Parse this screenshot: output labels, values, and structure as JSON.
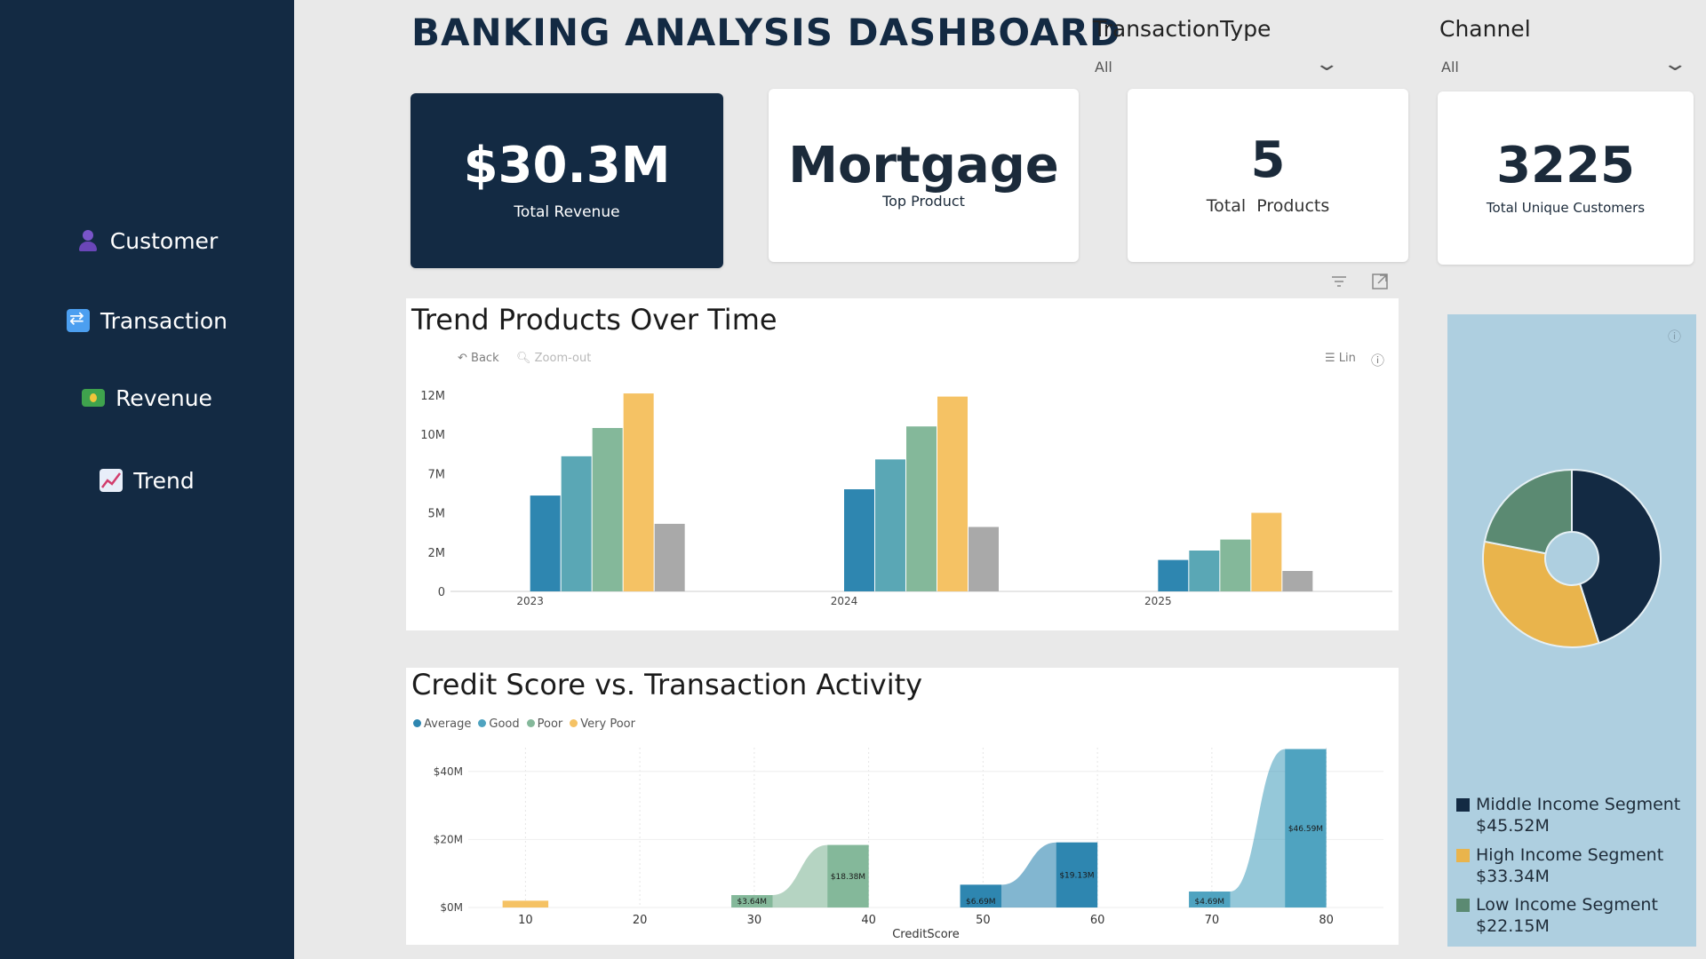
{
  "sidebar": {
    "items": [
      {
        "label": "Customer",
        "icon": "bust-in-silhouette-icon"
      },
      {
        "label": "Transaction",
        "icon": "repeat-arrows-icon"
      },
      {
        "label": "Revenue",
        "icon": "money-banknote-icon"
      },
      {
        "label": "Trend",
        "icon": "chart-increasing-icon"
      }
    ]
  },
  "header": {
    "title": "BANKING ANALYSIS DASHBOARD"
  },
  "filters": {
    "transaction_type": {
      "label": "TransactionType",
      "value": "All"
    },
    "channel": {
      "label": "Channel",
      "value": "All"
    }
  },
  "kpis": {
    "revenue": {
      "value": "$30.3M",
      "label": "Total Revenue"
    },
    "top_product": {
      "value": "Mortgage",
      "label": "Top Product"
    },
    "products": {
      "value": "5",
      "label": "Total  Products"
    },
    "customers": {
      "value": "3225",
      "label": "Total Unique Customers"
    }
  },
  "trend_panel": {
    "title": "Trend Products Over Time",
    "back_label": "Back",
    "zoom_out_label": "Zoom-out",
    "lin_label": "Lin"
  },
  "credit_panel": {
    "title": "Credit Score vs. Transaction Activity",
    "xlabel": "CreditScore"
  },
  "segments_panel": {
    "legend": [
      {
        "name": "Middle Income Segment",
        "value": "$45.52M"
      },
      {
        "name": "High Income Segment",
        "value": "$33.34M"
      },
      {
        "name": "Low Income Segment",
        "value": "$22.15M"
      }
    ]
  },
  "colors": {
    "navy": "#132a43",
    "bar1": "#2e86b0",
    "bar2": "#5aa7b5",
    "bar3": "#84b89a",
    "bar4": "#f5c264",
    "bar5": "#a9a9a9",
    "pie_middle": "#132a43",
    "pie_high": "#e9b44c",
    "pie_low": "#5b8a72",
    "pie_bg": "#aecfe0"
  },
  "chart_data": [
    {
      "type": "bar",
      "title": "Trend Products Over Time",
      "categories": [
        "2023",
        "2024",
        "2025"
      ],
      "series": [
        {
          "values": [
            6.1,
            6.5,
            2.0
          ]
        },
        {
          "values": [
            8.6,
            8.4,
            2.6
          ]
        },
        {
          "values": [
            10.4,
            10.5,
            3.3
          ]
        },
        {
          "values": [
            12.6,
            12.4,
            5.0
          ]
        },
        {
          "values": [
            4.3,
            4.1,
            1.3
          ]
        }
      ],
      "yticks": [
        "0",
        "2M",
        "5M",
        "7M",
        "10M",
        "12M"
      ],
      "ytick_values": [
        0,
        2.5,
        5,
        7.5,
        10,
        12.5
      ],
      "ylim": [
        0,
        13
      ]
    },
    {
      "type": "area",
      "title": "Credit Score vs. Transaction Activity",
      "xlabel": "CreditScore",
      "legend": [
        {
          "name": "Average",
          "color": "#2e86b0"
        },
        {
          "name": "Good",
          "color": "#4fa3c0"
        },
        {
          "name": "Poor",
          "color": "#84b89a"
        },
        {
          "name": "Very Poor",
          "color": "#f5c264"
        }
      ],
      "xticks": [
        10,
        20,
        30,
        40,
        50,
        60,
        70,
        80
      ],
      "yticks": [
        "$0M",
        "$20M",
        "$40M"
      ],
      "ytick_values": [
        0,
        20,
        40
      ],
      "ylim": [
        0,
        47
      ],
      "segments": [
        {
          "x_start": 8,
          "x_end": 12,
          "from": 2.0,
          "to": 2.0,
          "color": "#f5c264",
          "label": ""
        },
        {
          "x_start": 28,
          "x_end": 40,
          "from": 3.64,
          "to": 18.38,
          "color": "#84b89a",
          "label_from": "$3.64M",
          "label_to": "$18.38M"
        },
        {
          "x_start": 48,
          "x_end": 60,
          "from": 6.69,
          "to": 19.13,
          "color": "#2e86b0",
          "label_from": "$6.69M",
          "label_to": "$19.13M"
        },
        {
          "x_start": 68,
          "x_end": 80,
          "from": 4.69,
          "to": 46.59,
          "color": "#4fa3c0",
          "label_from": "$4.69M",
          "label_to": "$46.59M"
        }
      ]
    },
    {
      "type": "pie",
      "slices": [
        {
          "name": "Middle Income Segment",
          "value": 45.52,
          "color": "#132a43"
        },
        {
          "name": "High Income Segment",
          "value": 33.34,
          "color": "#e9b44c"
        },
        {
          "name": "Low Income Segment",
          "value": 22.15,
          "color": "#5b8a72"
        }
      ]
    }
  ]
}
